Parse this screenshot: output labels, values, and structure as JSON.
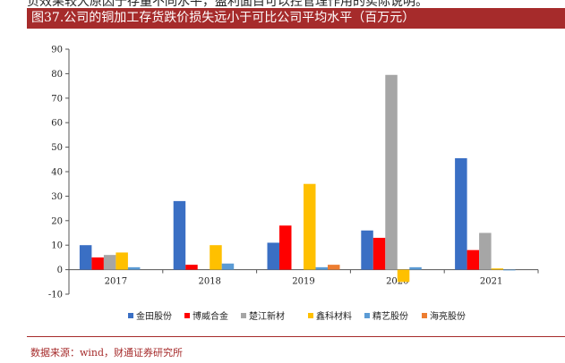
{
  "top_fragment": "负效果较大原因于存量不同水平，盈利面目可以控管理作用的实际说明。",
  "title": "图37.公司的铜加工存货跌价损失远小于可比公司平均水平（百万元）",
  "source": "数据来源：wind，财通证券研究所",
  "chart_data": {
    "type": "bar",
    "categories": [
      "2017",
      "2018",
      "2019",
      "2020",
      "2021"
    ],
    "series": [
      {
        "name": "金田股份",
        "color": "#3a6fc4",
        "values": [
          10,
          28,
          11,
          16,
          45.5
        ]
      },
      {
        "name": "博威合金",
        "color": "#ff0000",
        "values": [
          5,
          2,
          18,
          13,
          8
        ]
      },
      {
        "name": "楚江新材",
        "color": "#a6a6a6",
        "values": [
          6,
          0,
          0,
          79.5,
          15
        ]
      },
      {
        "name": "鑫科材料",
        "color": "#ffc000",
        "values": [
          7,
          10,
          35,
          -5,
          0.5
        ]
      },
      {
        "name": "精艺股份",
        "color": "#5b9bd5",
        "values": [
          1,
          2.5,
          1,
          1,
          -0.3
        ]
      },
      {
        "name": "海亮股份",
        "color": "#ed7d31",
        "values": [
          0,
          0,
          2,
          0,
          0
        ]
      }
    ],
    "yticks": [
      -10,
      0,
      10,
      20,
      30,
      40,
      50,
      60,
      70,
      80,
      90
    ],
    "ylim": [
      -10,
      90
    ],
    "legend_position": "bottom",
    "grid": false
  }
}
